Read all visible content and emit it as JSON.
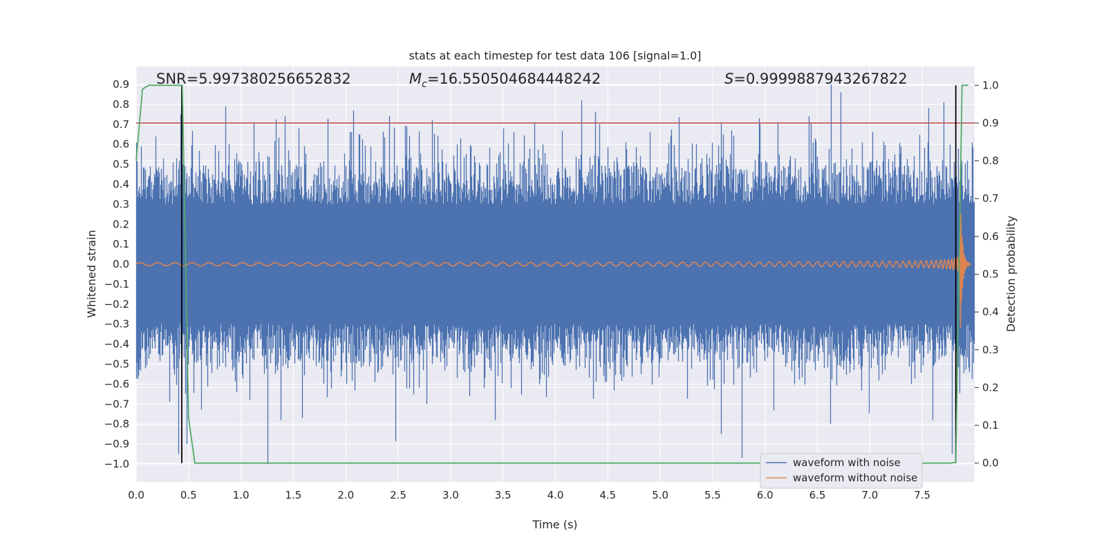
{
  "chart_data": {
    "type": "line",
    "title": "stats at each timestep for test data 106 [signal=1.0]",
    "xlabel": "Time (s)",
    "ylabel_left": "Whitened strain",
    "ylabel_right": "Detection probability",
    "xlim": [
      0.0,
      8.0
    ],
    "ylim_left": [
      -1.09,
      0.99
    ],
    "ylim_right": [
      -0.05,
      1.05
    ],
    "x_ticks": [
      "0.0",
      "0.5",
      "1.0",
      "1.5",
      "2.0",
      "2.5",
      "3.0",
      "3.5",
      "4.0",
      "4.5",
      "5.0",
      "5.5",
      "6.0",
      "6.5",
      "7.0",
      "7.5"
    ],
    "y_ticks_left": [
      "0.9",
      "0.8",
      "0.7",
      "0.6",
      "0.5",
      "0.4",
      "0.3",
      "0.2",
      "0.1",
      "0.0",
      "−0.1",
      "−0.2",
      "−0.3",
      "−0.4",
      "−0.5",
      "−0.6",
      "−0.7",
      "−0.8",
      "−0.9",
      "−1.0"
    ],
    "y_ticks_right": [
      "1.0",
      "0.9",
      "0.8",
      "0.7",
      "0.6",
      "0.5",
      "0.4",
      "0.3",
      "0.2",
      "0.1",
      "0.0"
    ],
    "annotations": {
      "snr": "SNR=5.997380256652832",
      "mc_symbol": "M",
      "mc_sub": "c",
      "mc_value": "=16.550504684448242",
      "s_symbol": "S",
      "s_value": "=0.9999887943267822"
    },
    "threshold_line": {
      "axis": "right",
      "value": 0.9,
      "color": "#c44e52"
    },
    "vertical_markers": [
      0.435,
      7.82
    ],
    "series": [
      {
        "name": "waveform with noise",
        "axis": "left",
        "color": "#4c72b0",
        "description_range": [
          -1.0,
          0.9
        ],
        "peaks_max": [
          [
            0.42,
            0.75
          ],
          [
            0.85,
            0.79
          ],
          [
            1.12,
            0.71
          ],
          [
            1.42,
            0.74
          ],
          [
            1.55,
            0.68
          ],
          [
            2.07,
            0.77
          ],
          [
            2.58,
            0.69
          ],
          [
            2.82,
            0.72
          ],
          [
            3.5,
            0.68
          ],
          [
            3.8,
            0.71
          ],
          [
            4.25,
            0.82
          ],
          [
            4.42,
            0.7
          ],
          [
            5.58,
            0.71
          ],
          [
            5.95,
            0.7
          ],
          [
            6.12,
            0.71
          ],
          [
            6.42,
            0.74
          ],
          [
            6.63,
            0.9
          ],
          [
            6.72,
            0.86
          ],
          [
            7.7,
            0.81
          ]
        ],
        "peaks_min": [
          [
            0.4,
            -0.95
          ],
          [
            0.48,
            -0.9
          ],
          [
            1.25,
            -1.0
          ],
          [
            1.38,
            -0.78
          ],
          [
            1.58,
            -0.77
          ],
          [
            2.77,
            -0.7
          ],
          [
            3.42,
            -0.78
          ],
          [
            5.58,
            -0.85
          ],
          [
            5.78,
            -0.97
          ],
          [
            6.62,
            -0.8
          ],
          [
            7.6,
            -0.78
          ],
          [
            7.78,
            -0.95
          ]
        ]
      },
      {
        "name": "waveform without noise",
        "axis": "left",
        "color": "#dd8452",
        "chirp": {
          "f_start": 6,
          "amp_start": 0.008,
          "merger_time": 7.86,
          "amp_peak": 0.4,
          "ring_down_end": 7.95
        }
      },
      {
        "name": "detection probability",
        "axis": "right",
        "color": "#55a868",
        "points": [
          [
            0.0,
            0.8
          ],
          [
            0.06,
            0.99
          ],
          [
            0.12,
            1.0
          ],
          [
            0.44,
            1.0
          ],
          [
            0.5,
            0.12
          ],
          [
            0.56,
            0.0
          ],
          [
            7.77,
            0.0
          ],
          [
            7.82,
            0.002
          ],
          [
            7.88,
            1.0
          ],
          [
            7.94,
            1.0
          ]
        ]
      }
    ],
    "legend": {
      "placement": "lower-right",
      "entries": [
        "waveform with noise",
        "waveform without noise"
      ]
    },
    "grid": true
  }
}
